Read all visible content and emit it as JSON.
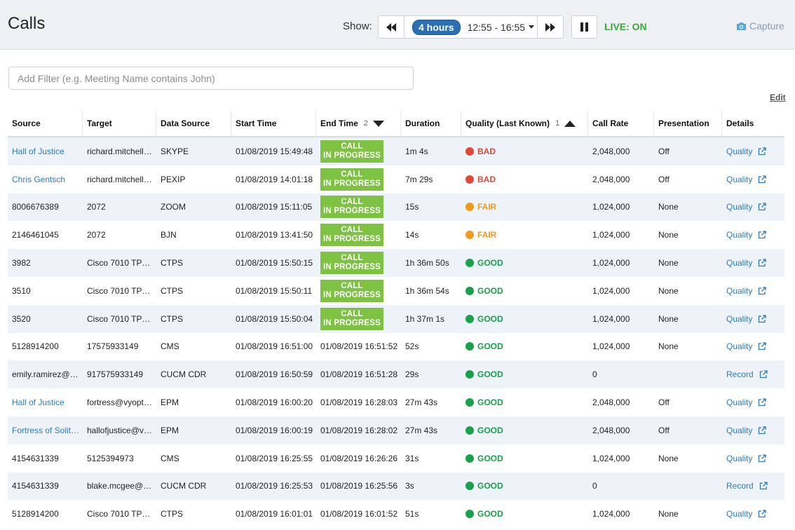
{
  "header": {
    "title": "Calls",
    "show_label": "Show:",
    "range_pill": "4 hours",
    "range_text": "12:55 - 16:55",
    "live_label": "LIVE: ON",
    "capture_label": "Capture"
  },
  "filter": {
    "placeholder": "Add Filter (e.g. Meeting Name contains John)"
  },
  "edit_label": "Edit",
  "columns": {
    "source": "Source",
    "target": "Target",
    "data_source": "Data Source",
    "start_time": "Start Time",
    "end_time": "End Time",
    "end_time_sort": "2",
    "duration": "Duration",
    "quality": "Quality (Last Known)",
    "quality_sort": "1",
    "call_rate": "Call Rate",
    "presentation": "Presentation",
    "details": "Details"
  },
  "status_label": {
    "line1": "CALL",
    "line2": "IN PROGRESS"
  },
  "colors": {
    "bad": "#e0483a",
    "fair": "#ee9a1c",
    "good": "#1aa04a",
    "in_progress": "#7dc242",
    "link": "#2b7bb9",
    "live": "#3aa63a"
  },
  "rows": [
    {
      "source": "Hall of Justice",
      "source_link": true,
      "target": "richard.mitchell…",
      "data_source": "SKYPE",
      "start": "01/08/2019 15:49:48",
      "end": "",
      "in_progress": true,
      "duration": "1m 4s",
      "quality": "BAD",
      "rate": "2,048,000",
      "presentation": "Off",
      "details": "Quality"
    },
    {
      "source": "Chris Gentsch",
      "source_link": true,
      "target": "richard.mitchell…",
      "data_source": "PEXIP",
      "start": "01/08/2019 14:01:18",
      "end": "",
      "in_progress": true,
      "duration": "7m 29s",
      "quality": "BAD",
      "rate": "2,048,000",
      "presentation": "Off",
      "details": "Quality"
    },
    {
      "source": "8006676389",
      "source_link": false,
      "target": "2072",
      "data_source": "ZOOM",
      "start": "01/08/2019 15:11:05",
      "end": "",
      "in_progress": true,
      "duration": "15s",
      "quality": "FAIR",
      "rate": "1,024,000",
      "presentation": "None",
      "details": "Quality"
    },
    {
      "source": "2146461045",
      "source_link": false,
      "target": "2072",
      "data_source": "BJN",
      "start": "01/08/2019 13:41:50",
      "end": "",
      "in_progress": true,
      "duration": "14s",
      "quality": "FAIR",
      "rate": "1,024,000",
      "presentation": "None",
      "details": "Quality"
    },
    {
      "source": "3982",
      "source_link": false,
      "target": "Cisco 7010 TP…",
      "data_source": "CTPS",
      "start": "01/08/2019 15:50:15",
      "end": "",
      "in_progress": true,
      "duration": "1h 36m 50s",
      "quality": "GOOD",
      "rate": "1,024,000",
      "presentation": "None",
      "details": "Quality"
    },
    {
      "source": "3510",
      "source_link": false,
      "target": "Cisco 7010 TP…",
      "data_source": "CTPS",
      "start": "01/08/2019 15:50:11",
      "end": "",
      "in_progress": true,
      "duration": "1h 36m 54s",
      "quality": "GOOD",
      "rate": "1,024,000",
      "presentation": "None",
      "details": "Quality"
    },
    {
      "source": "3520",
      "source_link": false,
      "target": "Cisco 7010 TP…",
      "data_source": "CTPS",
      "start": "01/08/2019 15:50:04",
      "end": "",
      "in_progress": true,
      "duration": "1h 37m 1s",
      "quality": "GOOD",
      "rate": "1,024,000",
      "presentation": "None",
      "details": "Quality"
    },
    {
      "source": "5128914200",
      "source_link": false,
      "target": "17575933149",
      "data_source": "CMS",
      "start": "01/08/2019 16:51:00",
      "end": "01/08/2019 16:51:52",
      "in_progress": false,
      "duration": "52s",
      "quality": "GOOD",
      "rate": "1,024,000",
      "presentation": "None",
      "details": "Quality"
    },
    {
      "source": "emily.ramirez@…",
      "source_link": false,
      "target": "917575933149",
      "data_source": "CUCM CDR",
      "start": "01/08/2019 16:50:59",
      "end": "01/08/2019 16:51:28",
      "in_progress": false,
      "duration": "29s",
      "quality": "GOOD",
      "rate": "0",
      "presentation": "",
      "details": "Record"
    },
    {
      "source": "Hall of Justice",
      "source_link": true,
      "target": "fortress@vyopt…",
      "data_source": "EPM",
      "start": "01/08/2019 16:00:20",
      "end": "01/08/2019 16:28:03",
      "in_progress": false,
      "duration": "27m 43s",
      "quality": "GOOD",
      "rate": "2,048,000",
      "presentation": "Off",
      "details": "Quality"
    },
    {
      "source": "Fortress of Solit…",
      "source_link": true,
      "target": "hallofjustice@v…",
      "data_source": "EPM",
      "start": "01/08/2019 16:00:19",
      "end": "01/08/2019 16:28:02",
      "in_progress": false,
      "duration": "27m 43s",
      "quality": "GOOD",
      "rate": "2,048,000",
      "presentation": "Off",
      "details": "Quality"
    },
    {
      "source": "4154631339",
      "source_link": false,
      "target": "5125394973",
      "data_source": "CMS",
      "start": "01/08/2019 16:25:55",
      "end": "01/08/2019 16:26:26",
      "in_progress": false,
      "duration": "31s",
      "quality": "GOOD",
      "rate": "1,024,000",
      "presentation": "None",
      "details": "Quality"
    },
    {
      "source": "4154631339",
      "source_link": false,
      "target": "blake.mcgee@…",
      "data_source": "CUCM CDR",
      "start": "01/08/2019 16:25:53",
      "end": "01/08/2019 16:25:56",
      "in_progress": false,
      "duration": "3s",
      "quality": "GOOD",
      "rate": "0",
      "presentation": "",
      "details": "Record"
    },
    {
      "source": "5128914200",
      "source_link": false,
      "target": "Cisco 7010 TP…",
      "data_source": "CTPS",
      "start": "01/08/2019 16:01:01",
      "end": "01/08/2019 16:01:52",
      "in_progress": false,
      "duration": "51s",
      "quality": "GOOD",
      "rate": "1,024,000",
      "presentation": "None",
      "details": "Quality"
    }
  ]
}
